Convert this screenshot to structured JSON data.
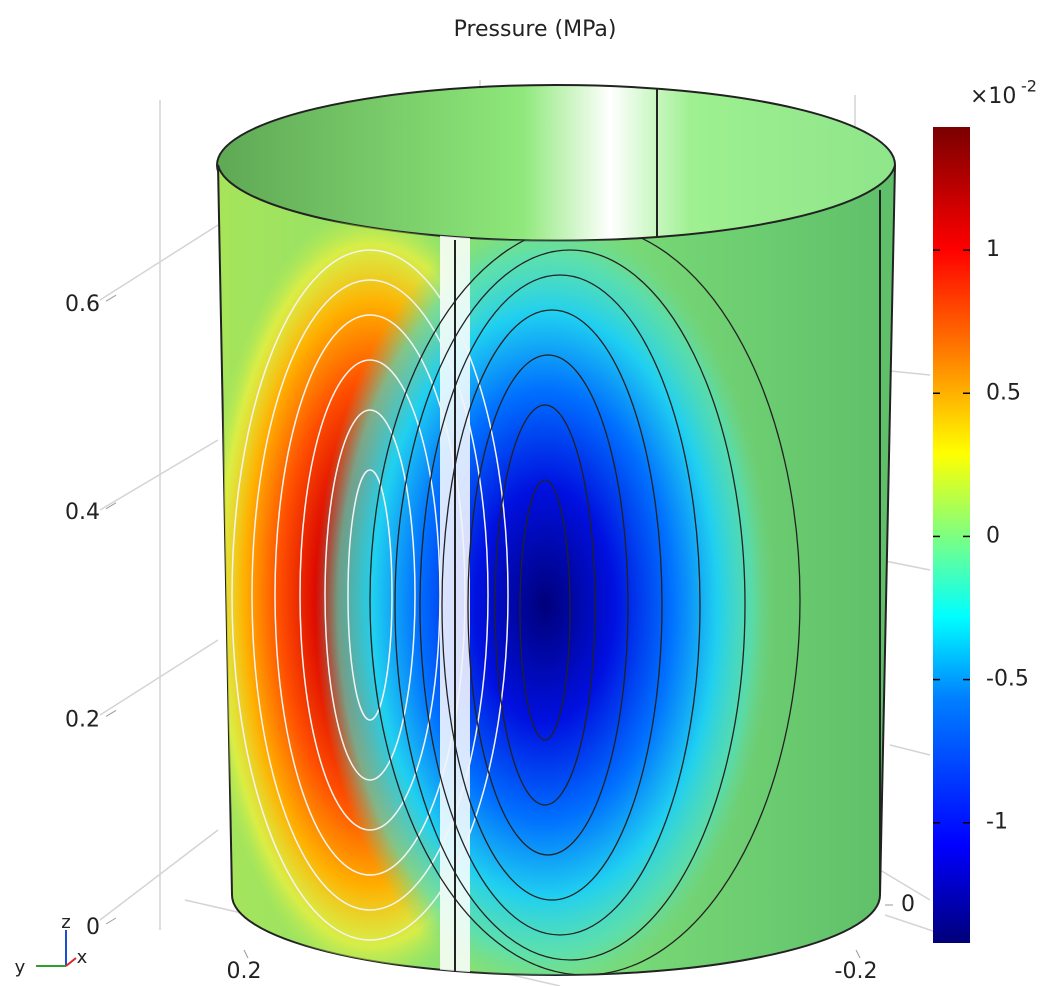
{
  "chart_data": {
    "type": "surface",
    "title": "Pressure (MPa)",
    "zticks": [
      0,
      0.2,
      0.4,
      0.6
    ],
    "yticks": [
      0.2,
      -0.2
    ],
    "xticks": [
      0
    ],
    "axis_triad": {
      "z": "z",
      "y": "y",
      "x": "x"
    },
    "colorbar": {
      "lim": [
        -1.42,
        1.43
      ],
      "ticks": [
        1,
        0.5,
        0,
        -0.5,
        -1
      ],
      "multiplier": "×10",
      "exponent": "-2",
      "colormap": "rainbow"
    }
  }
}
